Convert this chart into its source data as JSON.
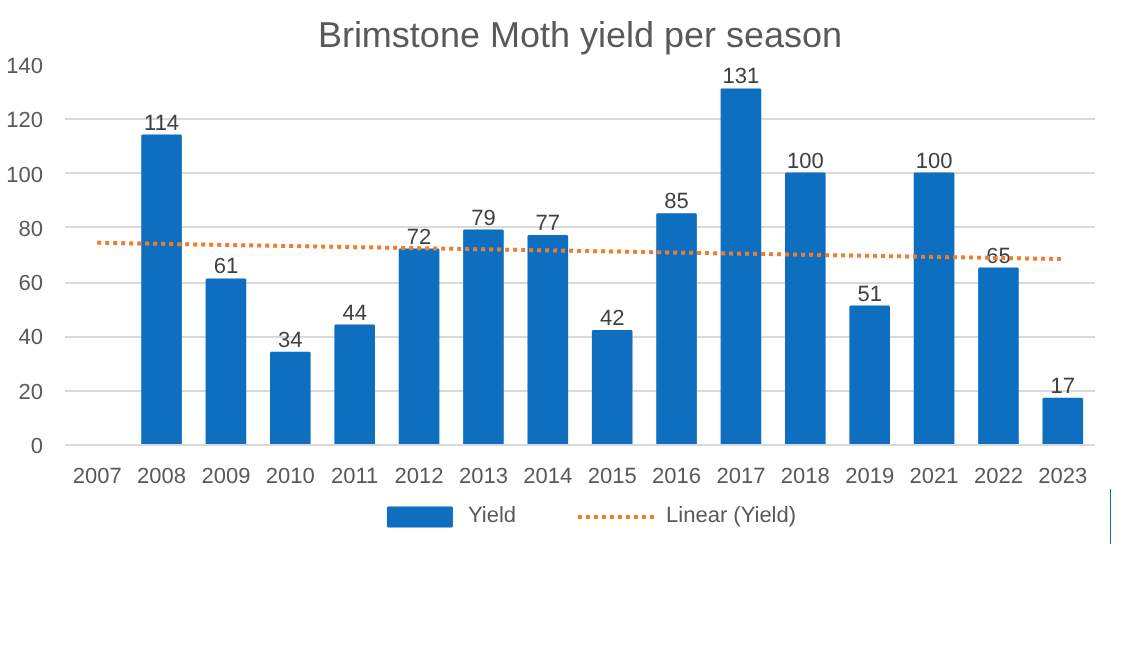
{
  "chart_data": {
    "type": "bar",
    "title": "Brimstone Moth yield per season",
    "categories": [
      "2007",
      "2008",
      "2009",
      "2010",
      "2011",
      "2012",
      "2013",
      "2014",
      "2015",
      "2016",
      "2017",
      "2018",
      "2019",
      "2021",
      "2022",
      "2023"
    ],
    "series": [
      {
        "name": "Yield",
        "color": "#0e6fc0",
        "values": [
          null,
          114,
          61,
          34,
          44,
          72,
          79,
          77,
          42,
          85,
          131,
          100,
          51,
          100,
          65,
          17
        ],
        "value_labels": [
          null,
          "114",
          "61",
          "34",
          "44",
          "72",
          "79",
          "77",
          "42",
          "85",
          "131",
          "100",
          "51",
          "100",
          "65",
          "17"
        ]
      },
      {
        "name": "Linear (Yield)",
        "type": "line",
        "line_style": "dotted",
        "color": "#ed7d31",
        "values": [
          74.5,
          74.1,
          73.7,
          73.3,
          72.9,
          72.5,
          72.1,
          71.7,
          71.3,
          70.9,
          70.5,
          70.1,
          69.7,
          69.3,
          68.9,
          68.5
        ]
      }
    ],
    "ylim": [
      0,
      140
    ],
    "yticks": [
      0,
      20,
      40,
      60,
      80,
      100,
      120,
      140
    ],
    "grid": "y",
    "legend": "bottom"
  }
}
